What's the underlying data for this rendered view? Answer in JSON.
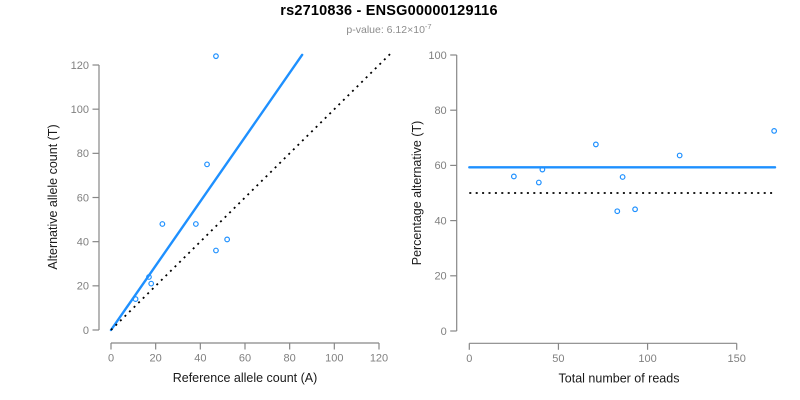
{
  "header": {
    "title": "rs2710836 - ENSG00000129116",
    "subtitle_base": "p-value: 6.12×10",
    "subtitle_exponent": "-7"
  },
  "colors": {
    "accent_blue": "#1E90FF",
    "axis_gray": "#878787",
    "tick_label_gray": "#808080",
    "axis_title_black": "#1a1a1a",
    "dotted_line_black": "#000000"
  },
  "chart_data": [
    {
      "name": "allele-counts",
      "type": "scatter",
      "xlabel": "Reference allele count (A)",
      "ylabel": "Alternative allele count (T)",
      "xlim": [
        0,
        125
      ],
      "ylim": [
        0,
        125
      ],
      "grid": false,
      "xticks": [
        0,
        20,
        40,
        60,
        80,
        100,
        120
      ],
      "yticks": [
        0,
        20,
        40,
        60,
        80,
        100,
        120
      ],
      "points": [
        [
          11,
          14
        ],
        [
          18,
          21
        ],
        [
          17,
          24
        ],
        [
          23,
          48
        ],
        [
          38,
          48
        ],
        [
          47,
          36
        ],
        [
          52,
          41
        ],
        [
          43,
          75
        ],
        [
          47,
          124
        ]
      ],
      "lines": [
        {
          "name": "fit-line",
          "style": "solid",
          "color": "#1E90FF",
          "x1": 0,
          "y1": 0,
          "x2": 85.6,
          "y2": 124.6
        },
        {
          "name": "identity-line",
          "style": "dotted",
          "color": "#000000",
          "x1": 0,
          "y1": 0,
          "x2": 125,
          "y2": 125
        }
      ]
    },
    {
      "name": "percentage-vs-reads",
      "type": "scatter",
      "xlabel": "Total number of reads",
      "ylabel": "Percentage alternative (T)",
      "xlim": [
        0,
        172
      ],
      "ylim": [
        0,
        100
      ],
      "grid": false,
      "xticks": [
        0,
        50,
        100,
        150
      ],
      "yticks": [
        0,
        20,
        40,
        60,
        80,
        100
      ],
      "points": [
        [
          25,
          56
        ],
        [
          39,
          53.8
        ],
        [
          41,
          58.5
        ],
        [
          71,
          67.6
        ],
        [
          83,
          43.4
        ],
        [
          86,
          55.8
        ],
        [
          93,
          44.1
        ],
        [
          118,
          63.6
        ],
        [
          171,
          72.5
        ]
      ],
      "lines": [
        {
          "name": "mean-line",
          "style": "solid",
          "color": "#1E90FF",
          "x1": 0,
          "y1": 59.3,
          "x2": 171.5,
          "y2": 59.3
        },
        {
          "name": "null-line",
          "style": "dotted",
          "color": "#000000",
          "x1": 0,
          "y1": 50,
          "x2": 171.5,
          "y2": 50
        }
      ]
    }
  ]
}
